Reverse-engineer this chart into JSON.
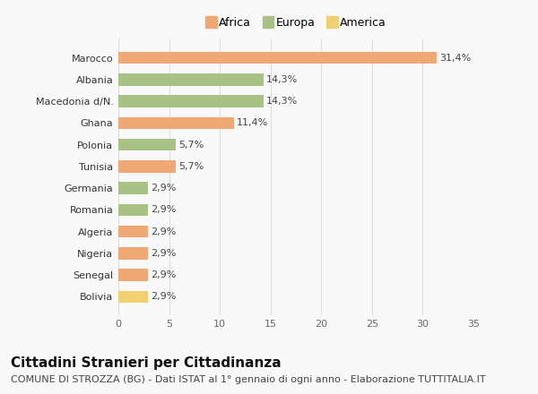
{
  "categories": [
    "Bolivia",
    "Senegal",
    "Nigeria",
    "Algeria",
    "Romania",
    "Germania",
    "Tunisia",
    "Polonia",
    "Ghana",
    "Macedonia d/N.",
    "Albania",
    "Marocco"
  ],
  "values": [
    2.9,
    2.9,
    2.9,
    2.9,
    2.9,
    2.9,
    5.7,
    5.7,
    11.4,
    14.3,
    14.3,
    31.4
  ],
  "continent": [
    "America",
    "Africa",
    "Africa",
    "Africa",
    "Europa",
    "Europa",
    "Africa",
    "Europa",
    "Africa",
    "Europa",
    "Europa",
    "Africa"
  ],
  "labels": [
    "2,9%",
    "2,9%",
    "2,9%",
    "2,9%",
    "2,9%",
    "2,9%",
    "5,7%",
    "5,7%",
    "11,4%",
    "14,3%",
    "14,3%",
    "31,4%"
  ],
  "colors": {
    "Africa": "#F0A875",
    "Europa": "#A8C285",
    "America": "#F0D070"
  },
  "legend_items": [
    "Africa",
    "Europa",
    "America"
  ],
  "xlim": [
    0,
    35
  ],
  "xticks": [
    0,
    5,
    10,
    15,
    20,
    25,
    30,
    35
  ],
  "title": "Cittadini Stranieri per Cittadinanza",
  "subtitle": "COMUNE DI STROZZA (BG) - Dati ISTAT al 1° gennaio di ogni anno - Elaborazione TUTTITALIA.IT",
  "background_color": "#f9f9f9",
  "grid_color": "#dddddd",
  "bar_height": 0.55,
  "title_fontsize": 11,
  "subtitle_fontsize": 8,
  "label_fontsize": 8,
  "tick_fontsize": 8,
  "legend_fontsize": 9
}
